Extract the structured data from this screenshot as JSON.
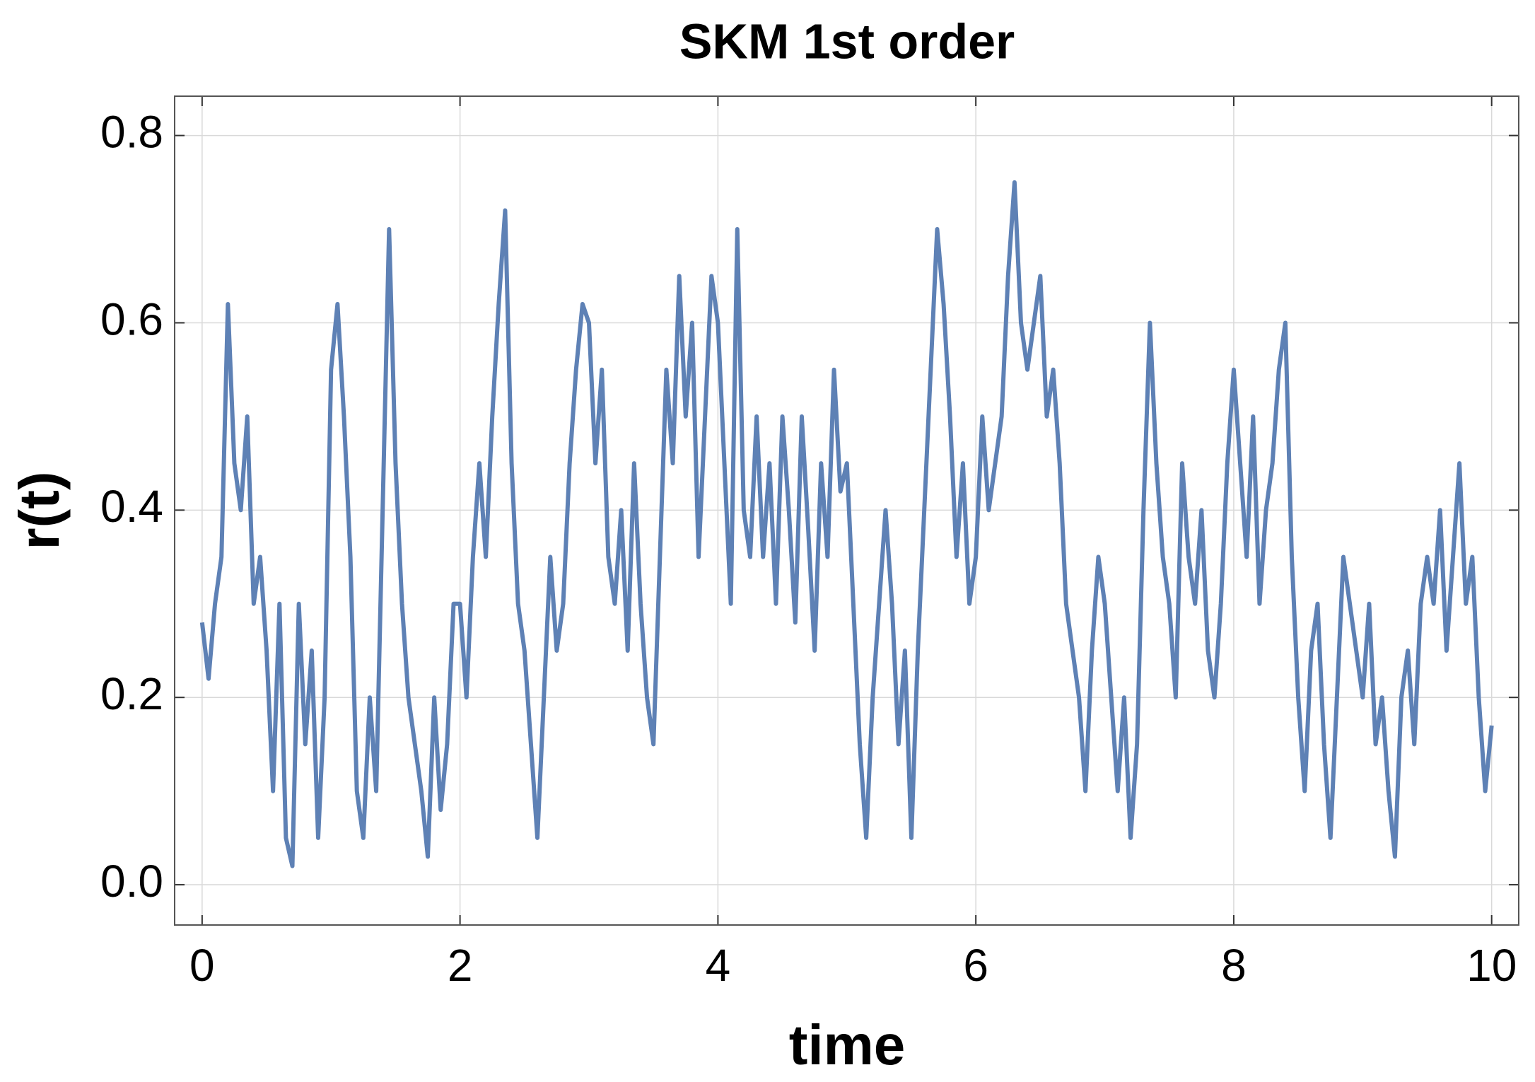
{
  "chart_data": {
    "type": "line",
    "title": "SKM 1st order",
    "x_label": "time",
    "y_label": "r(t)",
    "color": "#5e81b5",
    "grid": true,
    "xlim": [
      -0.213,
      10.21
    ],
    "ylim": [
      -0.043,
      0.842
    ],
    "xticks": [
      0,
      2,
      4,
      6,
      8,
      10
    ],
    "yticks": [
      {
        "value": 0,
        "label": "0.0"
      },
      0.2,
      0.4,
      0.6,
      0.8
    ],
    "x": [
      0,
      0.05,
      0.1,
      0.15,
      0.2,
      0.25,
      0.3,
      0.35,
      0.4,
      0.45,
      0.5,
      0.55,
      0.6,
      0.65,
      0.7,
      0.75,
      0.8,
      0.85,
      0.9,
      0.95,
      1,
      1.05,
      1.1,
      1.15,
      1.2,
      1.25,
      1.3,
      1.35,
      1.4,
      1.45,
      1.5,
      1.55,
      1.6,
      1.65,
      1.7,
      1.75,
      1.8,
      1.85,
      1.9,
      1.95,
      2,
      2.05,
      2.1,
      2.15,
      2.2,
      2.25,
      2.3,
      2.35,
      2.4,
      2.45,
      2.5,
      2.55,
      2.6,
      2.65,
      2.7,
      2.75,
      2.8,
      2.85,
      2.9,
      2.95,
      3,
      3.05,
      3.1,
      3.15,
      3.2,
      3.25,
      3.3,
      3.35,
      3.4,
      3.45,
      3.5,
      3.55,
      3.6,
      3.65,
      3.7,
      3.75,
      3.8,
      3.85,
      3.9,
      3.95,
      4,
      4.05,
      4.1,
      4.15,
      4.2,
      4.25,
      4.3,
      4.35,
      4.4,
      4.45,
      4.5,
      4.55,
      4.6,
      4.65,
      4.7,
      4.75,
      4.8,
      4.85,
      4.9,
      4.95,
      5,
      5.05,
      5.1,
      5.15,
      5.2,
      5.25,
      5.3,
      5.35,
      5.4,
      5.45,
      5.5,
      5.55,
      5.6,
      5.65,
      5.7,
      5.75,
      5.8,
      5.85,
      5.9,
      5.95,
      6,
      6.05,
      6.1,
      6.15,
      6.2,
      6.25,
      6.3,
      6.35,
      6.4,
      6.45,
      6.5,
      6.55,
      6.6,
      6.65,
      6.7,
      6.75,
      6.8,
      6.85,
      6.9,
      6.95,
      7,
      7.05,
      7.1,
      7.15,
      7.2,
      7.25,
      7.3,
      7.35,
      7.4,
      7.45,
      7.5,
      7.55,
      7.6,
      7.65,
      7.7,
      7.75,
      7.8,
      7.85,
      7.9,
      7.95,
      8,
      8.05,
      8.1,
      8.15,
      8.2,
      8.25,
      8.3,
      8.35,
      8.4,
      8.45,
      8.5,
      8.55,
      8.6,
      8.65,
      8.7,
      8.75,
      8.8,
      8.85,
      8.9,
      8.95,
      9,
      9.05,
      9.1,
      9.15,
      9.2,
      9.25,
      9.3,
      9.35,
      9.4,
      9.45,
      9.5,
      9.55,
      9.6,
      9.65,
      9.7,
      9.75,
      9.8,
      9.85,
      9.9,
      9.95,
      10
    ],
    "values": [
      0.28,
      0.22,
      0.3,
      0.35,
      0.62,
      0.45,
      0.4,
      0.5,
      0.3,
      0.35,
      0.25,
      0.1,
      0.3,
      0.05,
      0.02,
      0.3,
      0.15,
      0.25,
      0.05,
      0.2,
      0.55,
      0.62,
      0.5,
      0.35,
      0.1,
      0.05,
      0.2,
      0.1,
      0.4,
      0.7,
      0.45,
      0.3,
      0.2,
      0.15,
      0.1,
      0.03,
      0.2,
      0.08,
      0.15,
      0.3,
      0.3,
      0.2,
      0.35,
      0.45,
      0.35,
      0.5,
      0.62,
      0.72,
      0.45,
      0.3,
      0.25,
      0.15,
      0.05,
      0.2,
      0.35,
      0.25,
      0.3,
      0.45,
      0.55,
      0.62,
      0.6,
      0.45,
      0.55,
      0.35,
      0.3,
      0.4,
      0.25,
      0.45,
      0.3,
      0.2,
      0.15,
      0.35,
      0.55,
      0.45,
      0.65,
      0.5,
      0.6,
      0.35,
      0.5,
      0.65,
      0.6,
      0.45,
      0.3,
      0.7,
      0.4,
      0.35,
      0.5,
      0.35,
      0.45,
      0.3,
      0.5,
      0.4,
      0.28,
      0.5,
      0.38,
      0.25,
      0.45,
      0.35,
      0.55,
      0.42,
      0.45,
      0.3,
      0.15,
      0.05,
      0.2,
      0.3,
      0.4,
      0.3,
      0.15,
      0.25,
      0.05,
      0.25,
      0.4,
      0.55,
      0.7,
      0.62,
      0.5,
      0.35,
      0.45,
      0.3,
      0.35,
      0.5,
      0.4,
      0.45,
      0.5,
      0.65,
      0.75,
      0.6,
      0.55,
      0.6,
      0.65,
      0.5,
      0.55,
      0.45,
      0.3,
      0.25,
      0.2,
      0.1,
      0.25,
      0.35,
      0.3,
      0.2,
      0.1,
      0.2,
      0.05,
      0.15,
      0.4,
      0.6,
      0.45,
      0.35,
      0.3,
      0.2,
      0.45,
      0.35,
      0.3,
      0.4,
      0.25,
      0.2,
      0.3,
      0.45,
      0.55,
      0.45,
      0.35,
      0.5,
      0.3,
      0.4,
      0.45,
      0.55,
      0.6,
      0.35,
      0.2,
      0.1,
      0.25,
      0.3,
      0.15,
      0.05,
      0.2,
      0.35,
      0.3,
      0.25,
      0.2,
      0.3,
      0.15,
      0.2,
      0.1,
      0.03,
      0.2,
      0.25,
      0.15,
      0.3,
      0.35,
      0.3,
      0.4,
      0.25,
      0.35,
      0.45,
      0.3,
      0.35,
      0.2,
      0.1,
      0.17
    ]
  }
}
